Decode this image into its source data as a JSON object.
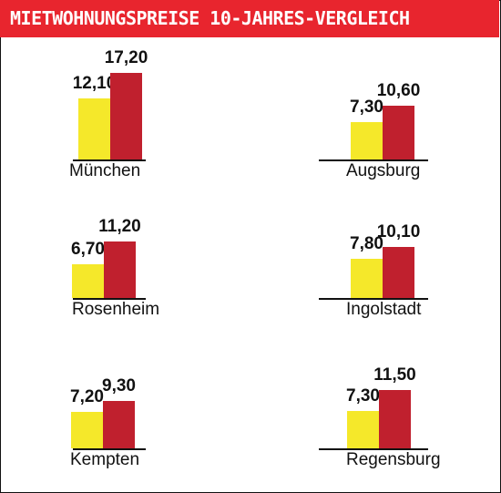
{
  "title": "MIETWOHNUNGSPREISE 10-JAHRES-VERGLEICH",
  "colors": {
    "header": "#e8252e",
    "old_bar": "#f5e82a",
    "new_bar": "#c0202e"
  },
  "chart_data": [
    {
      "type": "bar",
      "title": "München",
      "categories": [
        "München"
      ],
      "series": [
        {
          "values": [
            12.1
          ]
        },
        {
          "values": [
            17.2
          ]
        }
      ],
      "labels": [
        "12,10",
        "17,20"
      ]
    },
    {
      "type": "bar",
      "title": "Augsburg",
      "categories": [
        "Augsburg"
      ],
      "series": [
        {
          "values": [
            7.3
          ]
        },
        {
          "values": [
            10.6
          ]
        }
      ],
      "labels": [
        "7,30",
        "10,60"
      ]
    },
    {
      "type": "bar",
      "title": "Rosenheim",
      "categories": [
        "Rosenheim"
      ],
      "series": [
        {
          "values": [
            6.7
          ]
        },
        {
          "values": [
            11.2
          ]
        }
      ],
      "labels": [
        "6,70",
        "11,20"
      ]
    },
    {
      "type": "bar",
      "title": "Ingolstadt",
      "categories": [
        "Ingolstadt"
      ],
      "series": [
        {
          "values": [
            7.8
          ]
        },
        {
          "values": [
            10.1
          ]
        }
      ],
      "labels": [
        "7,80",
        "10,10"
      ]
    },
    {
      "type": "bar",
      "title": "Kempten",
      "categories": [
        "Kempten"
      ],
      "series": [
        {
          "values": [
            7.2
          ]
        },
        {
          "values": [
            9.3
          ]
        }
      ],
      "labels": [
        "7,20",
        "9,30"
      ]
    },
    {
      "type": "bar",
      "title": "Regensburg",
      "categories": [
        "Regensburg"
      ],
      "series": [
        {
          "values": [
            7.3
          ]
        },
        {
          "values": [
            11.5
          ]
        }
      ],
      "labels": [
        "7,30",
        "11,50"
      ]
    }
  ]
}
